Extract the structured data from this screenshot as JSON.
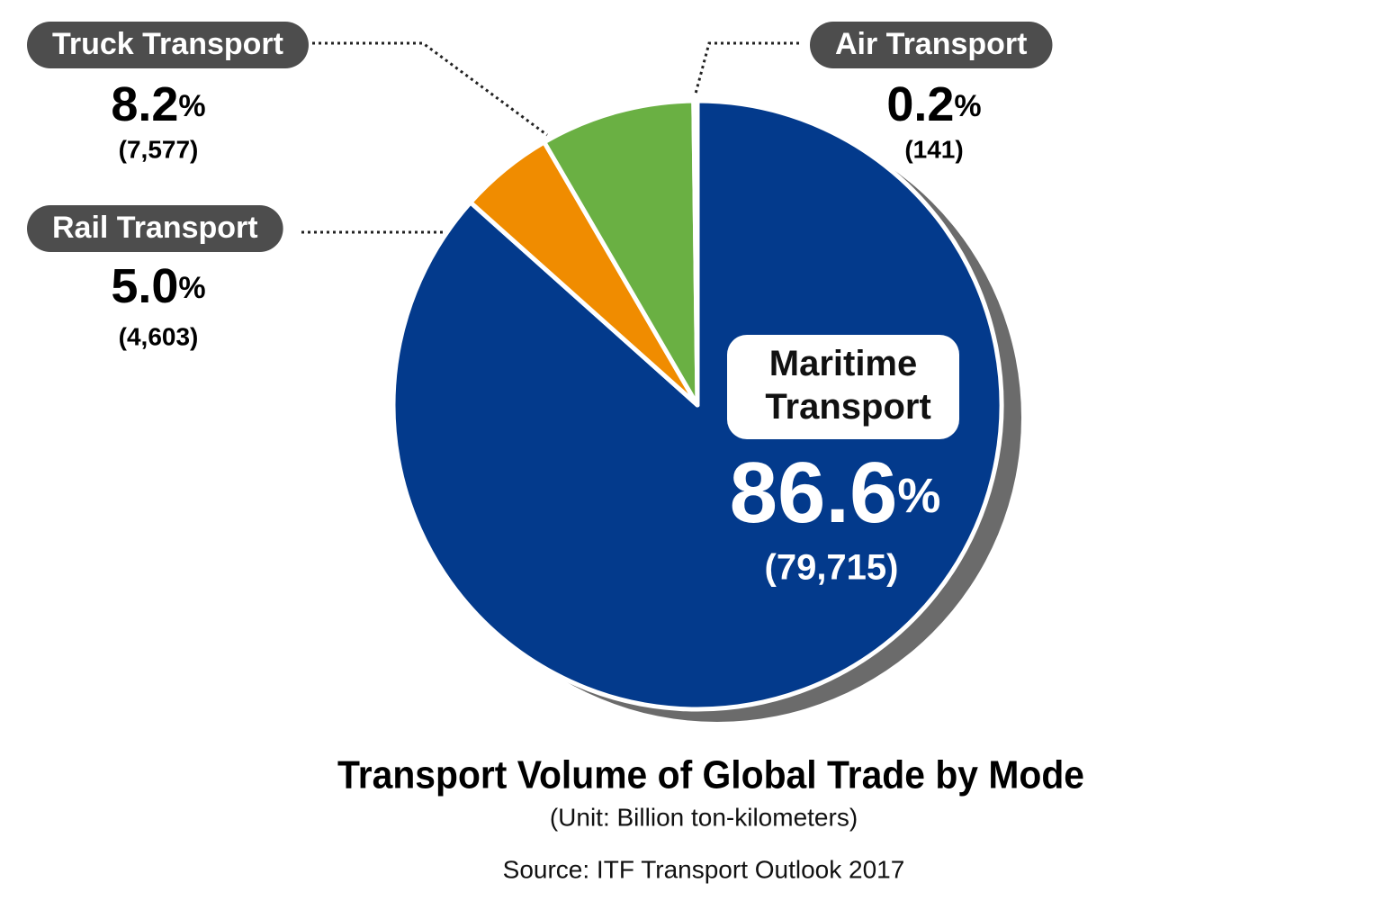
{
  "chart_data": {
    "type": "pie",
    "title": "Transport Volume of Global Trade by Mode",
    "subtitle": "(Unit: Billion ton-kilometers)",
    "source": "Source: ITF Transport Outlook 2017",
    "categories": [
      "Maritime Transport",
      "Rail Transport",
      "Truck Transport",
      "Air Transport"
    ],
    "values": [
      86.6,
      5.0,
      8.2,
      0.2
    ],
    "value_labels": [
      "86.6%",
      "5.0%",
      "8.2%",
      "0.2%"
    ],
    "volumes": [
      79715,
      4603,
      7577,
      141
    ],
    "volume_labels": [
      "(79,715)",
      "(4,603)",
      "(7,577)",
      "(141)"
    ],
    "colors": [
      "#033a8c",
      "#f08c00",
      "#6ab043",
      "#9e9e9e"
    ]
  }
}
